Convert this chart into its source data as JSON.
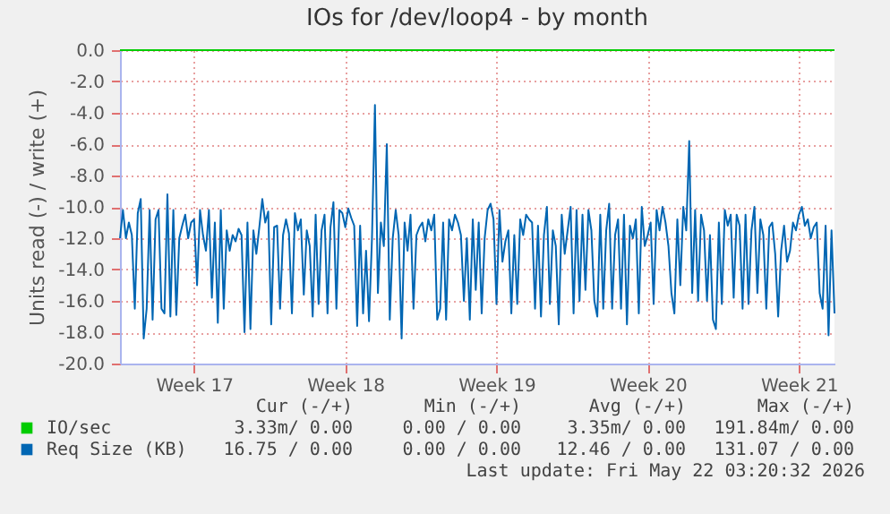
{
  "chart_data": {
    "type": "line",
    "title": "IOs for /dev/loop4 - by month",
    "ylabel": "Units read (-) / write (+)",
    "categories": [
      null,
      null,
      null,
      null,
      null,
      null,
      null,
      null,
      null,
      null,
      null,
      null,
      null,
      null,
      null,
      null,
      null,
      null,
      null,
      null,
      null,
      null,
      null,
      null,
      null,
      "Week 17",
      null,
      null,
      null,
      null,
      null,
      null,
      null,
      null,
      null,
      null,
      null,
      null,
      null,
      null,
      null,
      null,
      null,
      null,
      null,
      null,
      null,
      null,
      null,
      null,
      null,
      null,
      null,
      null,
      null,
      null,
      null,
      null,
      null,
      null,
      null,
      null,
      null,
      null,
      null,
      null,
      null,
      null,
      null,
      null,
      null,
      null,
      null,
      null,
      null,
      null,
      "Week 18",
      null,
      null,
      null,
      null,
      null,
      null,
      null,
      null,
      null,
      null,
      null,
      null,
      null,
      null,
      null,
      null,
      null,
      null,
      null,
      null,
      null,
      null,
      null,
      null,
      null,
      null,
      null,
      null,
      null,
      null,
      null,
      null,
      null,
      null,
      null,
      null,
      null,
      null,
      null,
      null,
      null,
      null,
      null,
      null,
      null,
      null,
      null,
      null,
      null,
      null,
      "Week 19",
      null,
      null,
      null,
      null,
      null,
      null,
      null,
      null,
      null,
      null,
      null,
      null,
      null,
      null,
      null,
      null,
      null,
      null,
      null,
      null,
      null,
      null,
      null,
      null,
      null,
      null,
      null,
      null,
      null,
      null,
      null,
      null,
      null,
      null,
      null,
      null,
      null,
      null,
      null,
      null,
      null,
      null,
      null,
      null,
      null,
      null,
      null,
      null,
      null,
      null,
      "Week 20",
      null,
      null,
      null,
      null,
      null,
      null,
      null,
      null,
      null,
      null,
      null,
      null,
      null,
      null,
      null,
      null,
      null,
      null,
      null,
      null,
      null,
      null,
      null,
      null,
      null,
      null,
      null,
      null,
      null,
      null,
      null,
      null,
      null,
      null,
      null,
      null,
      null,
      null,
      null,
      null,
      null,
      null,
      null,
      null,
      null,
      null,
      null,
      null,
      null,
      null,
      "Week 21",
      null,
      null,
      null,
      null,
      null,
      null,
      null,
      null,
      null,
      null,
      null,
      null
    ],
    "series": [
      {
        "name": "IO/sec",
        "color": "#00cc00",
        "values": [
          0,
          0,
          0,
          0,
          0,
          0,
          0,
          0,
          0,
          0,
          0,
          0,
          0,
          0,
          0,
          0,
          0,
          0,
          0,
          0,
          0,
          0,
          0,
          0,
          0,
          0,
          0,
          0,
          0,
          0,
          0,
          0,
          0,
          0,
          0,
          0,
          0,
          0,
          0,
          0,
          0,
          0,
          0,
          0,
          0,
          0,
          0,
          0,
          0,
          0,
          0,
          0,
          0,
          0,
          0,
          0,
          0,
          0,
          0,
          0,
          0,
          0,
          0,
          0,
          0,
          0,
          0,
          0,
          0,
          0,
          0,
          0,
          0,
          0,
          0,
          0,
          0,
          0,
          0,
          0,
          0,
          0,
          0,
          0,
          0,
          0,
          0,
          0,
          0,
          0,
          0,
          0,
          0,
          0,
          0,
          0,
          0,
          0,
          0,
          0,
          0,
          0,
          0,
          0,
          0,
          0,
          0,
          0,
          0,
          0,
          0,
          0,
          0,
          0,
          0,
          0,
          0,
          0,
          0,
          0,
          0,
          0,
          0,
          0,
          0,
          0,
          0,
          0,
          0,
          0,
          0,
          0,
          0,
          0,
          0,
          0,
          0,
          0,
          0,
          0,
          0,
          0,
          0,
          0,
          0,
          0,
          0,
          0,
          0,
          0,
          0,
          0,
          0,
          0,
          0,
          0,
          0,
          0,
          0,
          0,
          0,
          0,
          0,
          0,
          0,
          0,
          0,
          0,
          0,
          0,
          0,
          0,
          0,
          0,
          0,
          0,
          0,
          0,
          0,
          0,
          0,
          0,
          0,
          0,
          0,
          0,
          0,
          0,
          0,
          0,
          0,
          0,
          0,
          0,
          0,
          0,
          0,
          0,
          0,
          0,
          0,
          0,
          0,
          0,
          0,
          0,
          0,
          0,
          0,
          0,
          0,
          0,
          0,
          0,
          0,
          0,
          0,
          0,
          0,
          0,
          0,
          0,
          0,
          0,
          0,
          0,
          0,
          0,
          0,
          0,
          0,
          0,
          0,
          0,
          0,
          0,
          0,
          0,
          0,
          0,
          0,
          0
        ]
      },
      {
        "name": "Req Size (KB)",
        "color": "#0066b3",
        "values": [
          -12,
          -10.2,
          -12,
          -11,
          -11.8,
          -16.5,
          -10.4,
          -9.5,
          -18.4,
          -16.5,
          -10.2,
          -17.2,
          -10.8,
          -10.2,
          -16.5,
          -16.8,
          -9.2,
          -17,
          -10.2,
          -16.9,
          -12,
          -11.2,
          -10.5,
          -12,
          -11,
          -10.8,
          -15,
          -10.2,
          -11.8,
          -12.8,
          -10.2,
          -15.8,
          -11,
          -17.4,
          -10.2,
          -16.5,
          -11.5,
          -12.8,
          -11.8,
          -12.2,
          -11.4,
          -11.8,
          -18,
          -11,
          -17.8,
          -11.5,
          -13,
          -11.3,
          -9.5,
          -11,
          -10.3,
          -17.5,
          -11.3,
          -11.2,
          -16.5,
          -11.8,
          -10.8,
          -11.7,
          -16.8,
          -10.4,
          -11.5,
          -10.8,
          -15.6,
          -11.5,
          -12.5,
          -17,
          -10.5,
          -16.2,
          -11.5,
          -10.5,
          -16.8,
          -11.3,
          -9.7,
          -16.5,
          -10.2,
          -10.4,
          -11.3,
          -10.1,
          -10.7,
          -11.2,
          -17.6,
          -11.2,
          -16.8,
          -12.8,
          -17.3,
          -12,
          -3.5,
          -15.5,
          -11,
          -12.5,
          -6,
          -17.2,
          -12,
          -10.2,
          -11.8,
          -18.4,
          -11,
          -12.8,
          -10.5,
          -16.5,
          -11.8,
          -11.3,
          -11,
          -12.2,
          -10.8,
          -11.5,
          -10.5,
          -17.2,
          -16.5,
          -11,
          -17.2,
          -10.8,
          -11.5,
          -10.5,
          -11,
          -11.8,
          -16,
          -12,
          -17.2,
          -10.8,
          -15.3,
          -11,
          -16.8,
          -12,
          -10.2,
          -9.8,
          -10.8,
          -16.2,
          -10.2,
          -13.5,
          -12.2,
          -11.5,
          -16.8,
          -11.8,
          -16.2,
          -10.8,
          -11.8,
          -10.5,
          -10.8,
          -11,
          -16.5,
          -11.2,
          -17,
          -11.8,
          -10,
          -16.2,
          -11.5,
          -12.5,
          -17.5,
          -10.5,
          -13,
          -11.5,
          -10,
          -16.8,
          -10.2,
          -16,
          -10.5,
          -15.3,
          -10.2,
          -11.5,
          -16,
          -17,
          -10.5,
          -16.5,
          -11.5,
          -9.8,
          -16.5,
          -11.8,
          -10.8,
          -16.5,
          -10.5,
          -17.5,
          -11.2,
          -12,
          -10.8,
          -16.8,
          -10,
          -12.5,
          -11.8,
          -11,
          -16.2,
          -10.2,
          -11.5,
          -10,
          -11,
          -12.5,
          -15.5,
          -16.8,
          -10.8,
          -15,
          -10,
          -11.5,
          -5.8,
          -15.5,
          -10.2,
          -16,
          -10.5,
          -11.5,
          -16,
          -11.8,
          -17.2,
          -17.8,
          -11,
          -16.2,
          -10.2,
          -11.2,
          -10.5,
          -15.8,
          -10.5,
          -11.2,
          -16.5,
          -10.5,
          -16.2,
          -11.5,
          -10,
          -15.5,
          -10.8,
          -11.8,
          -16.5,
          -11.3,
          -11,
          -13,
          -17,
          -12.8,
          -11.2,
          -13.5,
          -12.8,
          -11,
          -11.5,
          -10.5,
          -10,
          -11.2,
          -10.8,
          -12,
          -11.3,
          -11,
          -15.5,
          -16.5,
          -11.2,
          -18.2,
          -11.5,
          -16.8
        ]
      }
    ],
    "ylim": [
      -20,
      0
    ],
    "yticks": [
      {
        "value": -20,
        "label": "-20.0"
      },
      {
        "value": -18,
        "label": "-18.0"
      },
      {
        "value": -16,
        "label": "-16.0"
      },
      {
        "value": -14,
        "label": "-14.0"
      },
      {
        "value": -12,
        "label": "-12.0"
      },
      {
        "value": -10,
        "label": "-10.0"
      },
      {
        "value": -8,
        "label": "-8.0"
      },
      {
        "value": -6,
        "label": "-6.0"
      },
      {
        "value": -4,
        "label": "-4.0"
      },
      {
        "value": -2,
        "label": "-2.0"
      },
      {
        "value": 0,
        "label": "0.0"
      }
    ],
    "grid": true,
    "legend": "bottom",
    "line_style": "solid",
    "annotations": [
      "Cur (-/+)       Min (-/+)       Avg (-/+)       Max (-/+)",
      "3.33m/ 0.00     0.00 / 0.00    3.35m/ 0.00   191.84m/ 0.00",
      "16.75 / 0.00     0.00 / 0.00   12.46 / 0.00   131.07 / 0.00",
      "Last update: Fri May 22 03:20:32 2026"
    ]
  }
}
